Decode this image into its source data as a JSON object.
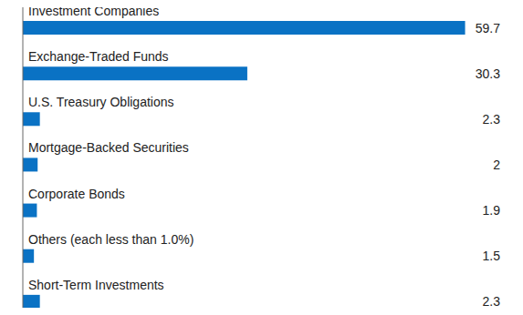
{
  "chart_data": {
    "type": "bar",
    "orientation": "horizontal",
    "categories": [
      "Investment Companies",
      "Exchange-Traded Funds",
      "U.S. Treasury Obligations",
      "Mortgage-Backed Securities",
      "Corporate Bonds",
      "Others (each less than 1.0%)",
      "Short-Term Investments"
    ],
    "values": [
      59.7,
      30.3,
      2.3,
      2.0,
      1.9,
      1.5,
      2.3
    ],
    "color": "#0a72c4",
    "xlim": [
      0,
      60
    ],
    "data_labels": true,
    "tick_labels": false
  }
}
